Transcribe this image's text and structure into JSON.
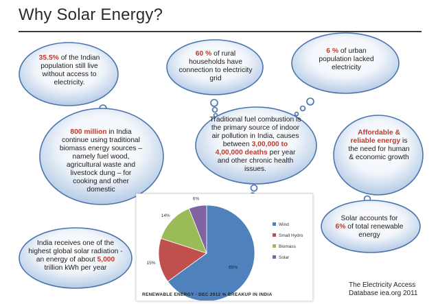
{
  "title": "Why Solar Energy?",
  "clouds": {
    "c1": {
      "hl": "35.5%",
      "rest": " of the Indian population still live without access to electricity."
    },
    "c2": {
      "hl": "60 %",
      "rest": " of rural households have connection to electricity grid"
    },
    "c3": {
      "hl": "6 %",
      "rest": " of urban population lacked electricity"
    },
    "c4": {
      "hl": "800 million",
      "rest": " in India continue using traditional biomass energy sources – namely fuel wood, agricultural waste and livestock dung – for cooking and other domestic"
    },
    "c5": {
      "p1": "Traditional fuel combustion is the primary source of indoor air pollution in India, causes between ",
      "hl1": "3,00,000 to 4,00,000 deaths",
      "p2": " per year and other chronic health issues."
    },
    "c6": {
      "hl": "Affordable & reliable energy",
      "rest": " is the need for human & economic growth"
    },
    "c7": {
      "p1": "Solar accounts for ",
      "hl": "6%",
      "p2": " of total renewable energy"
    },
    "c8": {
      "p1": "India receives one of the highest global solar radiation - an energy of about ",
      "hl": "5,000",
      "p2": " trillion kWh per year"
    }
  },
  "chart_data": {
    "type": "pie",
    "title": "RENEWABLE ENERGY - DEC 2012 % BREAKUP IN INDIA",
    "categories": [
      "Wind",
      "Small Hydro",
      "Biomass",
      "Solar"
    ],
    "values": [
      65,
      15,
      14,
      6
    ],
    "labels": [
      "65%",
      "15%",
      "14%",
      "6%"
    ],
    "colors": [
      "#4f81bd",
      "#c0504d",
      "#9bbb59",
      "#8064a2"
    ],
    "legend": "right"
  },
  "source": {
    "line1": "The Electricity Access",
    "line2": "Database iea.org 2011"
  }
}
